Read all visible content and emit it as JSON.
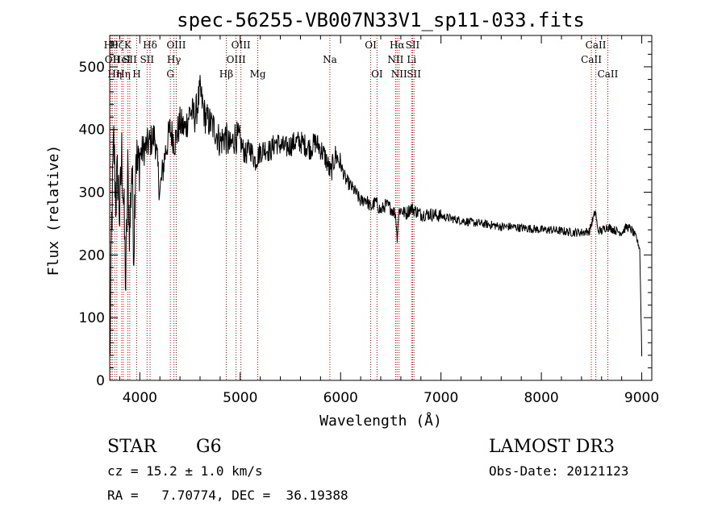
{
  "chart_data": {
    "type": "line",
    "title": "spec-56255-VB007N33V1_sp11-033.fits",
    "xlabel": "Wavelength (Å)",
    "ylabel": "Flux (relative)",
    "xlim": [
      3700,
      9100
    ],
    "ylim": [
      0,
      550
    ],
    "xticks": [
      4000,
      5000,
      6000,
      7000,
      8000,
      9000
    ],
    "yticks": [
      0,
      100,
      200,
      300,
      400,
      500
    ],
    "series": [
      {
        "name": "spectrum",
        "x": [
          3700,
          3720,
          3740,
          3760,
          3780,
          3800,
          3820,
          3840,
          3860,
          3880,
          3900,
          3920,
          3940,
          3960,
          3980,
          4000,
          4050,
          4100,
          4150,
          4200,
          4250,
          4300,
          4350,
          4400,
          4450,
          4500,
          4550,
          4600,
          4650,
          4700,
          4750,
          4800,
          4850,
          4900,
          4950,
          5000,
          5050,
          5100,
          5150,
          5200,
          5250,
          5300,
          5350,
          5400,
          5450,
          5500,
          5550,
          5600,
          5650,
          5700,
          5750,
          5800,
          5850,
          5900,
          5950,
          6000,
          6050,
          6100,
          6150,
          6200,
          6250,
          6300,
          6350,
          6400,
          6450,
          6500,
          6550,
          6562,
          6580,
          6600,
          6650,
          6700,
          6750,
          6800,
          6900,
          7000,
          7100,
          7200,
          7300,
          7400,
          7500,
          7600,
          7700,
          7800,
          7900,
          8000,
          8100,
          8200,
          8300,
          8400,
          8480,
          8500,
          8540,
          8560,
          8600,
          8650,
          8700,
          8750,
          8800,
          8850,
          8900,
          8950,
          8980,
          9000
        ],
        "y": [
          20,
          250,
          380,
          290,
          330,
          260,
          360,
          280,
          150,
          330,
          230,
          350,
          210,
          380,
          330,
          360,
          370,
          380,
          390,
          300,
          360,
          400,
          380,
          410,
          400,
          430,
          420,
          460,
          420,
          410,
          400,
          380,
          390,
          370,
          390,
          380,
          360,
          370,
          350,
          365,
          370,
          365,
          380,
          375,
          370,
          375,
          380,
          380,
          375,
          370,
          380,
          370,
          355,
          330,
          360,
          345,
          320,
          310,
          300,
          285,
          290,
          275,
          285,
          270,
          280,
          275,
          265,
          225,
          270,
          272,
          265,
          275,
          270,
          265,
          265,
          262,
          258,
          255,
          252,
          250,
          248,
          245,
          245,
          243,
          242,
          240,
          240,
          238,
          236,
          236,
          238,
          250,
          270,
          240,
          238,
          245,
          242,
          238,
          236,
          245,
          240,
          225,
          210,
          40
        ]
      }
    ],
    "line_annotations": [
      {
        "label": "Hθ",
        "wl": 3712,
        "row": 0
      },
      {
        "label": "OII",
        "wl": 3727,
        "row": 1
      },
      {
        "label": "Hη",
        "wl": 3750,
        "row": 2
      },
      {
        "label": "Hζ",
        "wl": 3771,
        "row": 0
      },
      {
        "label": "HeI",
        "wl": 3820,
        "row": 1
      },
      {
        "label": "Hη",
        "wl": 3836,
        "row": 2
      },
      {
        "label": "K",
        "wl": 3880,
        "row": 0
      },
      {
        "label": "SII",
        "wl": 3900,
        "row": 1
      },
      {
        "label": "H",
        "wl": 3969,
        "row": 2
      },
      {
        "label": "Hδ",
        "wl": 4102,
        "row": 0
      },
      {
        "label": "SII",
        "wl": 4072,
        "row": 1
      },
      {
        "label": "OIII",
        "wl": 4363,
        "row": 0
      },
      {
        "label": "Hγ",
        "wl": 4340,
        "row": 1
      },
      {
        "label": "G",
        "wl": 4304,
        "row": 2
      },
      {
        "label": "Hβ",
        "wl": 4861,
        "row": 2
      },
      {
        "label": "OIII",
        "wl": 5007,
        "row": 0
      },
      {
        "label": "OIII",
        "wl": 4959,
        "row": 1
      },
      {
        "label": "Mg",
        "wl": 5175,
        "row": 2
      },
      {
        "label": "Na",
        "wl": 5893,
        "row": 1
      },
      {
        "label": "OI",
        "wl": 6300,
        "row": 0
      },
      {
        "label": "OI",
        "wl": 6363,
        "row": 2
      },
      {
        "label": "Hα",
        "wl": 6563,
        "row": 0
      },
      {
        "label": "NII",
        "wl": 6548,
        "row": 1
      },
      {
        "label": "NII",
        "wl": 6583,
        "row": 2
      },
      {
        "label": "SII",
        "wl": 6717,
        "row": 0
      },
      {
        "label": "Li",
        "wl": 6708,
        "row": 1
      },
      {
        "label": "SII",
        "wl": 6731,
        "row": 2
      },
      {
        "label": "CaII",
        "wl": 8542,
        "row": 0
      },
      {
        "label": "CaII",
        "wl": 8498,
        "row": 1
      },
      {
        "label": "CaII",
        "wl": 8662,
        "row": 2
      }
    ]
  },
  "info": {
    "class_label": "STAR",
    "subclass": "G6",
    "survey": "LAMOST DR3",
    "redshift_text": "cz = 15.2 ± 1.0 km/s",
    "obs_date_text": "Obs-Date: 20121123",
    "coords_text": "RA =   7.70774, DEC =  36.19388"
  },
  "colors": {
    "line": "#000000",
    "marker_line": "#cc0000",
    "background": "#ffffff"
  }
}
